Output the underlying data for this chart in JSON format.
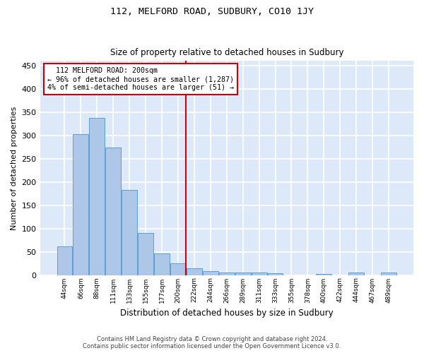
{
  "title": "112, MELFORD ROAD, SUDBURY, CO10 1JY",
  "subtitle": "Size of property relative to detached houses in Sudbury",
  "xlabel": "Distribution of detached houses by size in Sudbury",
  "ylabel": "Number of detached properties",
  "annotation_line1": "  112 MELFORD ROAD: 200sqm  ",
  "annotation_line2": "← 96% of detached houses are smaller (1,287)",
  "annotation_line3": "4% of semi-detached houses are larger (51) →",
  "footer_line1": "Contains HM Land Registry data © Crown copyright and database right 2024.",
  "footer_line2": "Contains public sector information licensed under the Open Government Licence v3.0.",
  "bar_labels": [
    "44sqm",
    "66sqm",
    "88sqm",
    "111sqm",
    "133sqm",
    "155sqm",
    "177sqm",
    "200sqm",
    "222sqm",
    "244sqm",
    "266sqm",
    "289sqm",
    "311sqm",
    "333sqm",
    "355sqm",
    "378sqm",
    "400sqm",
    "422sqm",
    "444sqm",
    "467sqm",
    "489sqm"
  ],
  "bar_values": [
    62,
    303,
    337,
    274,
    183,
    90,
    46,
    25,
    15,
    8,
    5,
    5,
    5,
    4,
    0,
    0,
    3,
    0,
    5,
    0,
    5
  ],
  "bar_color": "#aec6e8",
  "bar_edge_color": "#5a9fd4",
  "vline_color": "#cc0000",
  "annotation_box_color": "#cc0000",
  "background_color": "#dde8f8",
  "grid_color": "#ffffff",
  "ylim": [
    0,
    460
  ],
  "yticks": [
    0,
    50,
    100,
    150,
    200,
    250,
    300,
    350,
    400,
    450
  ]
}
